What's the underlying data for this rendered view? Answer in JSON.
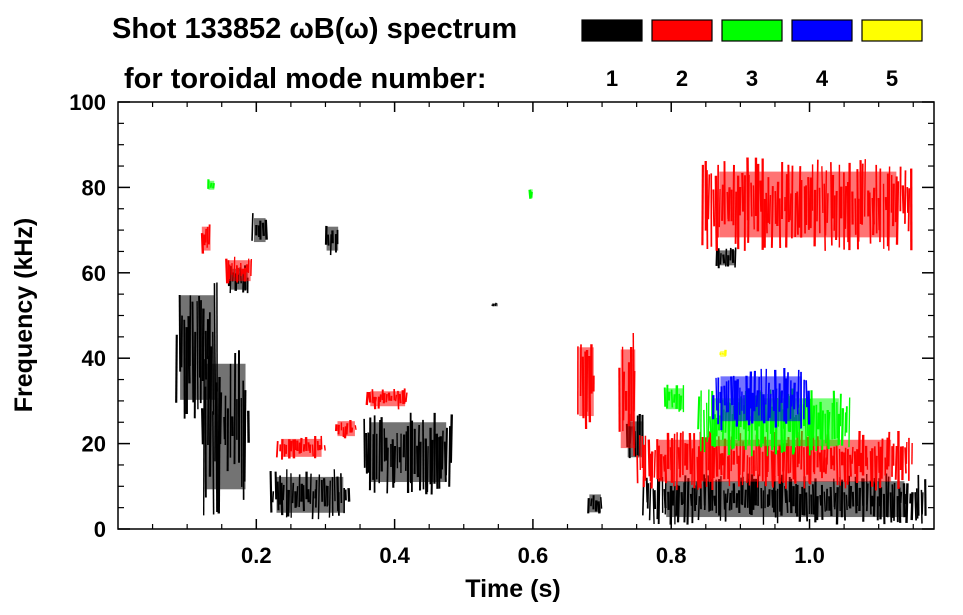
{
  "chart_data": {
    "type": "heatmap",
    "title_line1": "Shot 133852 ωB(ω) spectrum",
    "title_line2": "for toroidal mode number:",
    "xlabel": "Time (s)",
    "ylabel": "Frequency (kHz)",
    "xlim": [
      0.0,
      1.18
    ],
    "ylim": [
      0,
      100
    ],
    "x_ticks": [
      {
        "value": 0.2,
        "label": "0.2"
      },
      {
        "value": 0.4,
        "label": "0.4"
      },
      {
        "value": 0.6,
        "label": "0.6"
      },
      {
        "value": 0.8,
        "label": "0.8"
      },
      {
        "value": 1.0,
        "label": "1.0"
      }
    ],
    "y_ticks": [
      {
        "value": 0,
        "label": "0"
      },
      {
        "value": 20,
        "label": "20"
      },
      {
        "value": 40,
        "label": "40"
      },
      {
        "value": 60,
        "label": "60"
      },
      {
        "value": 80,
        "label": "80"
      },
      {
        "value": 100,
        "label": "100"
      }
    ],
    "legend_placement": "top-right",
    "legend": [
      {
        "label": "1",
        "color": "#000000"
      },
      {
        "label": "2",
        "color": "#ff0000"
      },
      {
        "label": "3",
        "color": "#00ff00"
      },
      {
        "label": "4",
        "color": "#0000ff"
      },
      {
        "label": "5",
        "color": "#ffff00"
      }
    ],
    "series": [
      {
        "mode": 1,
        "color": "#000000",
        "regions": [
          {
            "t": [
              0.085,
              0.145
            ],
            "f": [
              25,
              60
            ]
          },
          {
            "t": [
              0.12,
              0.19
            ],
            "f": [
              3,
              45
            ]
          },
          {
            "t": [
              0.16,
              0.19
            ],
            "f": [
              55,
              62
            ]
          },
          {
            "t": [
              0.195,
              0.215
            ],
            "f": [
              66,
              74
            ]
          },
          {
            "t": [
              0.22,
              0.335
            ],
            "f": [
              2,
              14
            ]
          },
          {
            "t": [
              0.3,
              0.32
            ],
            "f": [
              64,
              72
            ]
          },
          {
            "t": [
              0.355,
              0.485
            ],
            "f": [
              8,
              28
            ]
          },
          {
            "t": [
              0.54,
              0.55
            ],
            "f": [
              52,
              53
            ]
          },
          {
            "t": [
              0.68,
              0.7
            ],
            "f": [
              3,
              9
            ]
          },
          {
            "t": [
              0.735,
              0.76
            ],
            "f": [
              15,
              27
            ]
          },
          {
            "t": [
              0.76,
              1.17
            ],
            "f": [
              1,
              13
            ]
          },
          {
            "t": [
              0.865,
              0.895
            ],
            "f": [
              61,
              66
            ]
          }
        ]
      },
      {
        "mode": 2,
        "color": "#ff0000",
        "regions": [
          {
            "t": [
              0.12,
              0.135
            ],
            "f": [
              64,
              72
            ]
          },
          {
            "t": [
              0.155,
              0.195
            ],
            "f": [
              57,
              64
            ]
          },
          {
            "t": [
              0.23,
              0.3
            ],
            "f": [
              16,
              22
            ]
          },
          {
            "t": [
              0.315,
              0.345
            ],
            "f": [
              21,
              26
            ]
          },
          {
            "t": [
              0.36,
              0.42
            ],
            "f": [
              28,
              33
            ]
          },
          {
            "t": [
              0.665,
              0.69
            ],
            "f": [
              23,
              46
            ]
          },
          {
            "t": [
              0.725,
              0.75
            ],
            "f": [
              14,
              47
            ]
          },
          {
            "t": [
              0.75,
              1.15
            ],
            "f": [
              9,
              23
            ]
          },
          {
            "t": [
              0.845,
              1.15
            ],
            "f": [
              65,
              87
            ]
          }
        ]
      },
      {
        "mode": 3,
        "color": "#00ff00",
        "regions": [
          {
            "t": [
              0.13,
              0.14
            ],
            "f": [
              79,
              82
            ]
          },
          {
            "t": [
              0.79,
              0.82
            ],
            "f": [
              27,
              34
            ]
          },
          {
            "t": [
              0.84,
              1.06
            ],
            "f": [
              17,
              33
            ]
          },
          {
            "t": [
              0.595,
              0.6
            ],
            "f": [
              77,
              80
            ]
          }
        ]
      },
      {
        "mode": 4,
        "color": "#0000ff",
        "regions": [
          {
            "t": [
              0.86,
              1.0
            ],
            "f": [
              23,
              38
            ]
          }
        ]
      },
      {
        "mode": 5,
        "color": "#ffff00",
        "regions": [
          {
            "t": [
              0.87,
              0.88
            ],
            "f": [
              40,
              42
            ]
          }
        ]
      }
    ]
  }
}
